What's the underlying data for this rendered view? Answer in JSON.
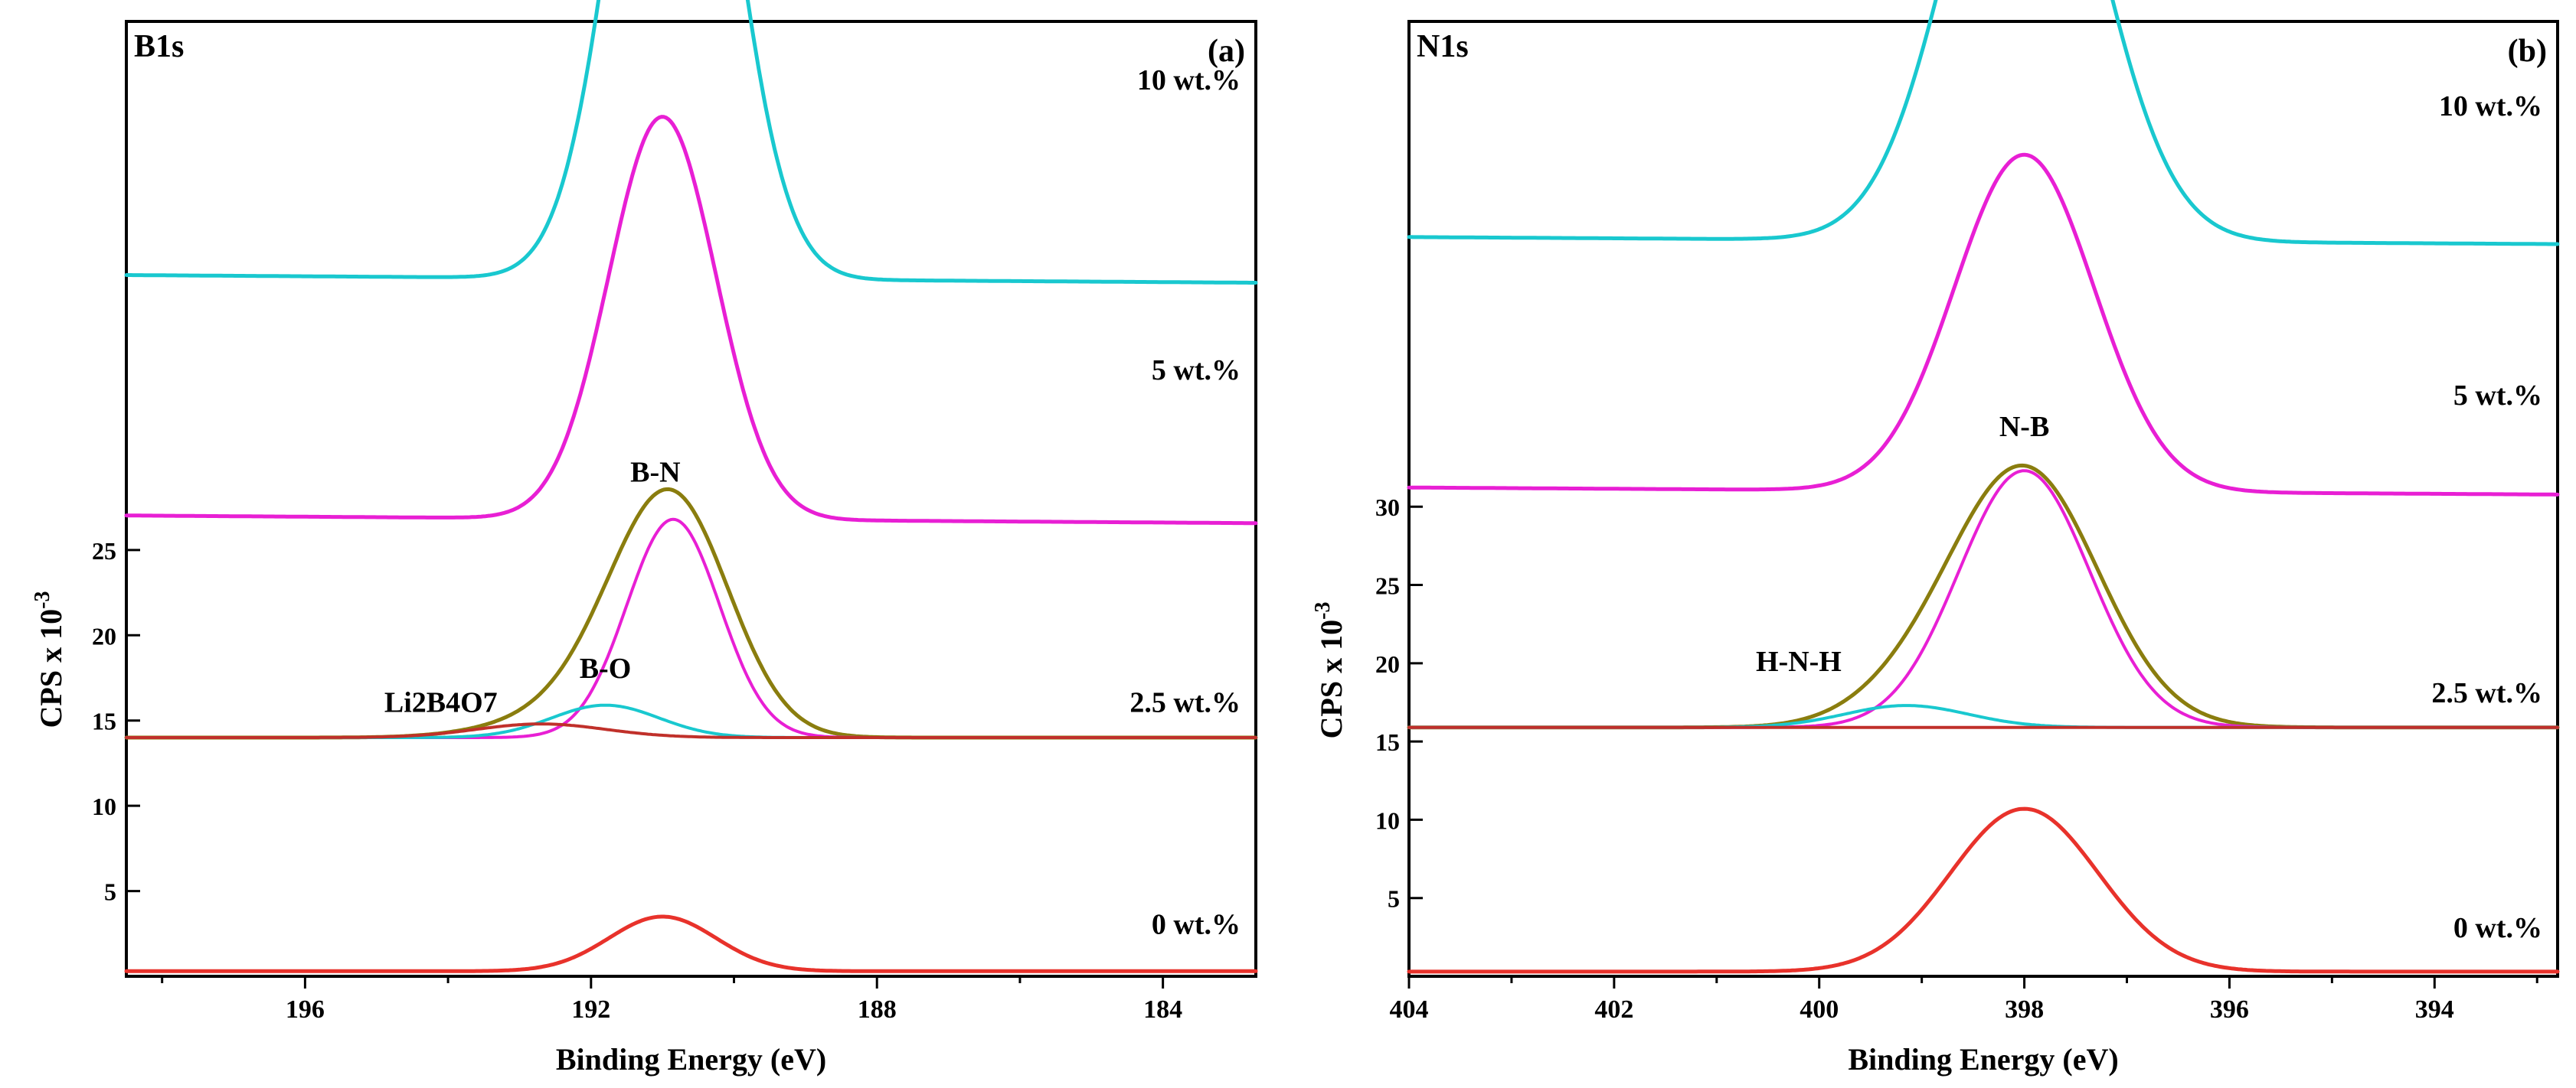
{
  "chart_data": [
    {
      "type": "line",
      "panel_label": "(a)",
      "title": "B1s",
      "xlabel": "Binding Energy (eV)",
      "ylabel": "CPS x 10",
      "ylabel_exponent": "-3",
      "xlim": [
        198.5,
        182.7
      ],
      "xticks": [
        196,
        192,
        188,
        184
      ],
      "yticks": [
        5,
        10,
        15,
        20,
        25
      ],
      "curve_labels": [
        {
          "text": "10 wt.%",
          "x": 183.8,
          "y": 52
        },
        {
          "text": "5 wt.%",
          "x": 183.8,
          "y": 35
        },
        {
          "text": "2.5 wt.%",
          "x": 184.0,
          "y": 15.5
        },
        {
          "text": "0 wt.%",
          "x": 183.8,
          "y": 2.5
        }
      ],
      "peak_labels": [
        {
          "text": "B-N",
          "x": 191.1,
          "y": 29.0
        },
        {
          "text": "B-O",
          "x": 191.8,
          "y": 17.5
        },
        {
          "text": "Li2B4O7",
          "x": 194.1,
          "y": 15.5
        }
      ],
      "series": [
        {
          "name": "0 wt.%",
          "color": "#e8322b",
          "baseline": 0.3,
          "peaks": [
            {
              "center": 191.0,
              "height": 3.2,
              "width": 0.75
            }
          ]
        },
        {
          "name": "2.5 wt.% envelope",
          "color": "#8a7d0e",
          "baseline": 14.0,
          "peaks": [
            {
              "center": 190.85,
              "height": 13.6,
              "width": 0.8
            },
            {
              "center": 191.8,
              "height": 1.8,
              "width": 0.75
            },
            {
              "center": 192.7,
              "height": 0.8,
              "width": 0.9
            }
          ]
        },
        {
          "name": "B-N",
          "color": "#e81fd4",
          "baseline": 14.0,
          "peaks": [
            {
              "center": 190.85,
              "height": 12.8,
              "width": 0.65
            }
          ]
        },
        {
          "name": "B-O",
          "color": "#19c8cf",
          "baseline": 14.0,
          "peaks": [
            {
              "center": 191.8,
              "height": 1.9,
              "width": 0.75
            }
          ]
        },
        {
          "name": "Li2B4O7",
          "color": "#c0302a",
          "baseline": 14.0,
          "peaks": [
            {
              "center": 192.7,
              "height": 0.8,
              "width": 0.9
            }
          ]
        },
        {
          "name": "5 wt.%",
          "color": "#e81fd4",
          "baseline": 26.8,
          "peaks": [
            {
              "center": 191.0,
              "height": 23.6,
              "width": 0.75
            }
          ]
        },
        {
          "name": "10 wt.%",
          "color": "#19c8cf",
          "baseline": 40.9,
          "peaks": [
            {
              "center": 190.85,
              "height": 40.0,
              "width": 0.78
            }
          ]
        }
      ]
    },
    {
      "type": "line",
      "panel_label": "(b)",
      "title": "N1s",
      "xlabel": "Binding Energy (eV)",
      "ylabel": "CPS x 10",
      "ylabel_exponent": "-3",
      "xlim": [
        404.0,
        392.8
      ],
      "xticks": [
        404,
        402,
        400,
        398,
        396,
        394
      ],
      "yticks": [
        5,
        10,
        15,
        20,
        25,
        30
      ],
      "curve_labels": [
        {
          "text": "10 wt.%",
          "x": 393.4,
          "y": 55
        },
        {
          "text": "5 wt.%",
          "x": 393.4,
          "y": 36.5
        },
        {
          "text": "2.5 wt.%",
          "x": 393.4,
          "y": 17.5
        },
        {
          "text": "0 wt.%",
          "x": 393.4,
          "y": 2.5
        }
      ],
      "peak_labels": [
        {
          "text": "N-B",
          "x": 398.0,
          "y": 34.5
        },
        {
          "text": "H-N-H",
          "x": 400.2,
          "y": 19.5
        }
      ],
      "series": [
        {
          "name": "0 wt.%",
          "color": "#e8322b",
          "baseline": 0.3,
          "peaks": [
            {
              "center": 398.0,
              "height": 10.4,
              "width": 0.72
            }
          ]
        },
        {
          "name": "2.5 wt.% envelope",
          "color": "#8a7d0e",
          "baseline": 15.9,
          "peaks": [
            {
              "center": 398.0,
              "height": 16.5,
              "width": 0.72
            },
            {
              "center": 399.15,
              "height": 1.4,
              "width": 0.6
            }
          ]
        },
        {
          "name": "N-B",
          "color": "#e81fd4",
          "baseline": 15.9,
          "peaks": [
            {
              "center": 398.0,
              "height": 16.4,
              "width": 0.64
            }
          ]
        },
        {
          "name": "H-N-H",
          "color": "#19c8cf",
          "baseline": 15.9,
          "peaks": [
            {
              "center": 399.15,
              "height": 1.4,
              "width": 0.6
            }
          ]
        },
        {
          "name": "baseline",
          "color": "#c0302a",
          "baseline": 15.9,
          "peaks": []
        },
        {
          "name": "5 wt.%",
          "color": "#e81fd4",
          "baseline": 31.0,
          "peaks": [
            {
              "center": 398.0,
              "height": 21.5,
              "width": 0.68
            }
          ]
        },
        {
          "name": "10 wt.%",
          "color": "#19c8cf",
          "baseline": 47.0,
          "peaks": [
            {
              "center": 398.0,
              "height": 31.5,
              "width": 0.72
            }
          ]
        }
      ]
    }
  ]
}
